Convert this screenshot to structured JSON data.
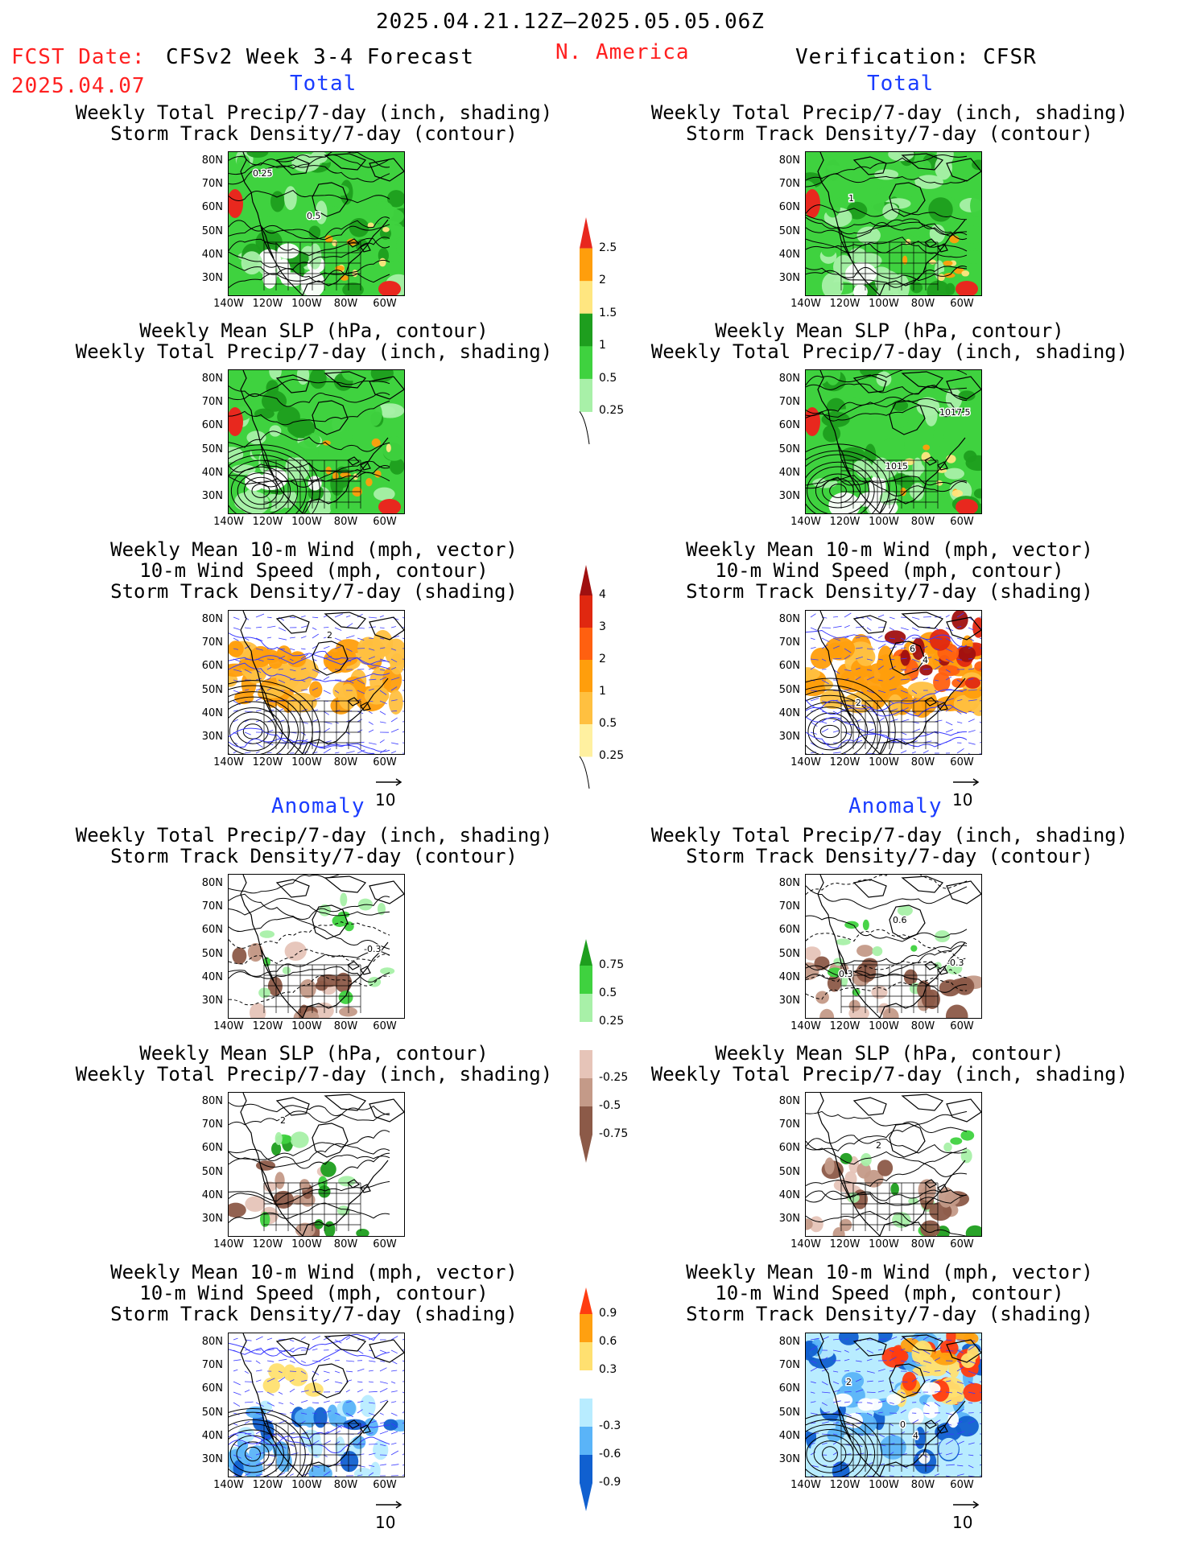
{
  "header": {
    "period": "2025.04.21.12Z–2025.05.05.06Z",
    "fcst_label": "FCST Date:",
    "fcst_date": "2025.04.07",
    "model": "CFSv2 Week 3-4 Forecast",
    "region": "N. America",
    "verification": "Verification: CFSR"
  },
  "sections": {
    "total_left": "Total",
    "total_right": "Total",
    "anomaly_left": "Anomaly",
    "anomaly_right": "Anomaly"
  },
  "titles": {
    "precip_storm": "Weekly Total Precip/7-day (inch, shading)\nStorm Track Density/7-day (contour)",
    "slp_precip": "Weekly Mean SLP (hPa, contour)\nWeekly Total Precip/7-day (inch, shading)",
    "wind_storm": "Weekly Mean 10-m Wind (mph, vector)\n10-m Wind Speed (mph, contour)\nStorm Track Density/7-day (shading)"
  },
  "axes": {
    "lat_ticks": [
      "80N",
      "70N",
      "60N",
      "50N",
      "40N",
      "30N"
    ],
    "lon_ticks": [
      "140W",
      "120W",
      "100W",
      "80W",
      "60W"
    ],
    "vector_ref": "10"
  },
  "colorbars": {
    "precip_total": {
      "labels": [
        "2.5",
        "2",
        "1.5",
        "1",
        "0.5",
        "0.25"
      ],
      "colors": [
        "#e8281e",
        "#ff9e0c",
        "#ffe680",
        "#1e9e1e",
        "#3fd23f",
        "#a8f0a8"
      ]
    },
    "storm_total": {
      "labels": [
        "4",
        "3",
        "2",
        "1",
        "0.5",
        "0.25"
      ],
      "colors": [
        "#a01010",
        "#e02810",
        "#ff6010",
        "#ff9e0c",
        "#ffc040",
        "#fff0a0"
      ]
    },
    "precip_anom": {
      "labels": [
        "0.75",
        "0.5",
        "0.25",
        "-0.25",
        "-0.5",
        "-0.75"
      ],
      "colors": [
        "#1e9e1e",
        "#3fd23f",
        "#a8f0a8",
        "#ffffff",
        "#e6c4b8",
        "#c49a88",
        "#8c5a48"
      ]
    },
    "storm_anom": {
      "labels": [
        "0.9",
        "0.6",
        "0.3",
        "-0.3",
        "-0.6",
        "-0.9"
      ],
      "colors": [
        "#ff3c10",
        "#ffa010",
        "#ffe070",
        "#ffffff",
        "#b8ecff",
        "#5ab4f8",
        "#1060d0"
      ]
    }
  },
  "contour_labels": {
    "r1_left": [
      "0.25",
      "0.5"
    ],
    "r1_right": [
      "1"
    ],
    "r2_right": [
      "1015",
      "1017.5"
    ],
    "r3_left": [
      "2"
    ],
    "r3_right": [
      "4",
      "2",
      "6"
    ],
    "r4_left": [
      "-0.3"
    ],
    "r4_right": [
      "0.3",
      "0.6",
      "-0.3"
    ],
    "r5_left": [
      "2"
    ],
    "r5_right": [
      "2"
    ],
    "r6_right": [
      "4",
      "2",
      "0"
    ]
  }
}
